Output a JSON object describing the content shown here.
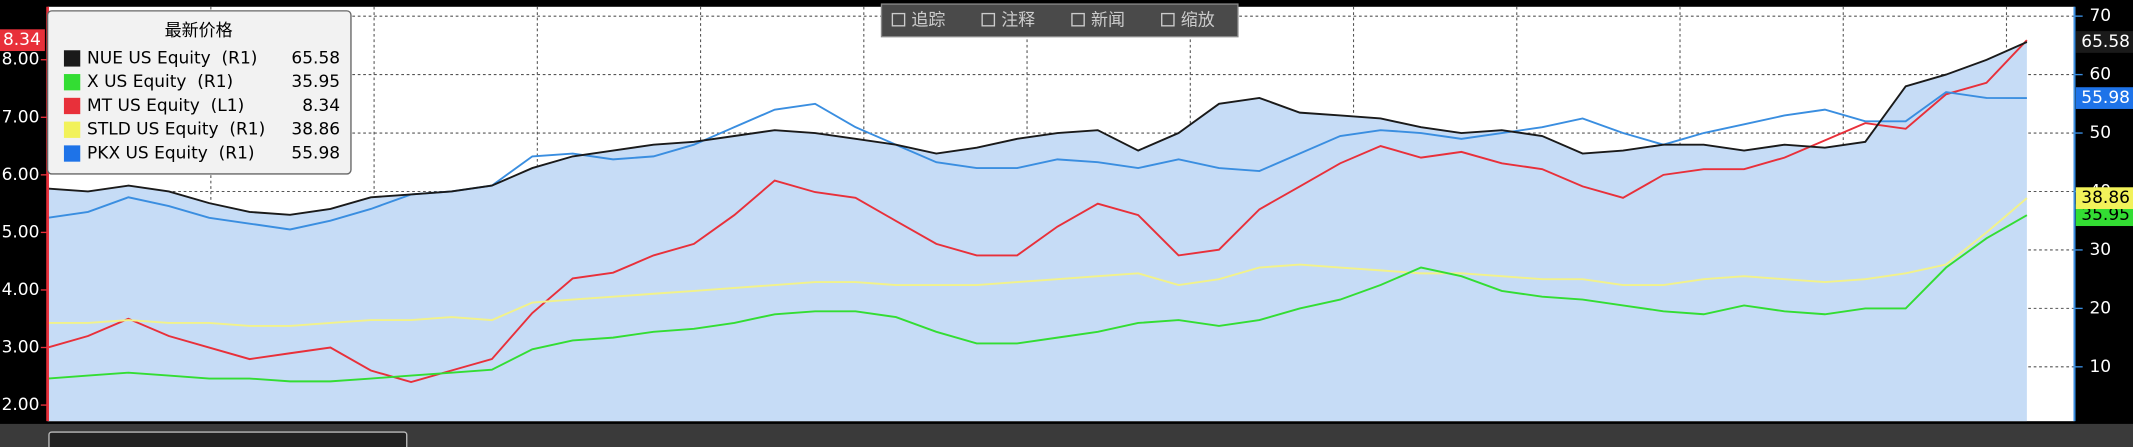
{
  "chart_data": {
    "type": "line",
    "legend_title": "最新价格",
    "legend_position": "upper left",
    "grid": true,
    "toolbar": [
      "追踪",
      "注释",
      "新闻",
      "缩放"
    ],
    "categories": [
      null,
      null,
      null,
      null,
      null,
      null,
      null,
      null,
      null,
      null,
      null,
      null,
      null,
      null,
      null,
      null,
      null,
      null,
      null,
      null,
      null,
      null,
      null,
      null,
      null,
      null,
      null,
      null,
      null,
      null,
      null,
      null,
      null,
      null,
      null,
      null,
      null,
      null,
      null,
      null,
      null,
      null,
      null,
      null,
      null,
      null,
      null,
      null,
      null,
      null
    ],
    "ylim": [
      1.72,
      8.92
    ],
    "yticks": [
      {
        "value": 2,
        "label": "2.00"
      },
      {
        "value": 3,
        "label": "3.00"
      },
      {
        "value": 4,
        "label": "4.00"
      },
      {
        "value": 5,
        "label": "5.00"
      },
      {
        "value": 6,
        "label": "6.00"
      },
      {
        "value": 7,
        "label": "7.00"
      },
      {
        "value": 8,
        "label": "8.00"
      }
    ],
    "y2lim": [
      0.7,
      71.6
    ],
    "y2ticks": [
      10,
      20,
      30,
      40,
      50,
      60,
      70
    ],
    "series": [
      {
        "name": "NUE US Equity  (R1)",
        "color": "#1a1a1a",
        "fill": "#c6dcf6",
        "tag_color": "#1a1a1a",
        "axis": "y2",
        "values": [
          40.5,
          40,
          41,
          40,
          38,
          36.5,
          36,
          37,
          39,
          39.5,
          40,
          41,
          44,
          46,
          47,
          48,
          48.5,
          49.5,
          50.5,
          50,
          49,
          48,
          46.5,
          47.5,
          49,
          50,
          50.5,
          47,
          50,
          55,
          56,
          53.5,
          53,
          52.5,
          51,
          50,
          50.5,
          49.5,
          46.5,
          47,
          48,
          48,
          47,
          48,
          47.5,
          48.5,
          58,
          60,
          62.5,
          65.58
        ]
      },
      {
        "name": "X US Equity  (R1)",
        "color": "#33dd33",
        "tag_color": "#33dd33",
        "axis": "y2",
        "values": [
          8,
          8.5,
          9,
          8.5,
          8,
          8,
          7.5,
          7.5,
          8,
          8.5,
          9,
          9.5,
          13,
          14.5,
          15,
          16,
          16.5,
          17.5,
          19,
          19.5,
          19.5,
          18.5,
          16,
          14,
          14,
          15,
          16,
          17.5,
          18,
          17,
          18,
          20,
          21.5,
          24,
          27,
          25.5,
          23,
          22,
          21.5,
          20.5,
          19.5,
          19,
          20.5,
          19.5,
          19,
          20,
          20,
          27,
          32,
          35.95
        ]
      },
      {
        "name": "MT US Equity  (L1)",
        "color": "#e8303a",
        "tag_color": "#e8303a",
        "axis": "y",
        "values": [
          3.0,
          3.2,
          3.5,
          3.2,
          3.0,
          2.8,
          2.9,
          3.0,
          2.6,
          2.4,
          2.6,
          2.8,
          3.6,
          4.2,
          4.3,
          4.6,
          4.8,
          5.3,
          5.9,
          5.7,
          5.6,
          5.2,
          4.8,
          4.6,
          4.6,
          5.1,
          5.5,
          5.3,
          4.6,
          4.7,
          5.4,
          5.8,
          6.2,
          6.5,
          6.3,
          6.4,
          6.2,
          6.1,
          5.8,
          5.6,
          6.0,
          6.1,
          6.1,
          6.3,
          6.6,
          6.9,
          6.8,
          7.4,
          7.6,
          8.34
        ]
      },
      {
        "name": "STLD US Equity  (R1)",
        "color": "#f2f28a",
        "tag_color": "#f2f25a",
        "axis": "y2",
        "values": [
          17.5,
          17.5,
          18,
          17.5,
          17.5,
          17,
          17,
          17.5,
          18,
          18,
          18.5,
          18,
          21,
          21.5,
          22,
          22.5,
          23,
          23.5,
          24,
          24.5,
          24.5,
          24,
          24,
          24,
          24.5,
          25,
          25.5,
          26,
          24,
          25,
          27,
          27.5,
          27,
          26.5,
          26,
          26,
          25.5,
          25,
          25,
          24,
          24,
          25,
          25.5,
          25,
          24.5,
          25,
          26,
          27.5,
          33,
          38.86
        ]
      },
      {
        "name": "PKX US Equity  (R1)",
        "color": "#3a8ee0",
        "tag_color": "#1e73e8",
        "axis": "y2",
        "values": [
          35.5,
          36.5,
          39,
          37.5,
          35.5,
          34.5,
          33.5,
          35,
          37,
          39.5,
          40,
          41,
          46,
          46.5,
          45.5,
          46,
          48,
          51,
          54,
          55,
          51,
          48,
          45,
          44,
          44,
          45.5,
          45,
          44,
          45.5,
          44,
          43.5,
          46.5,
          49.5,
          50.5,
          50,
          49,
          50,
          51,
          52.5,
          50,
          48,
          50,
          51.5,
          53,
          54,
          52,
          52,
          57,
          56,
          55.98
        ]
      }
    ]
  }
}
